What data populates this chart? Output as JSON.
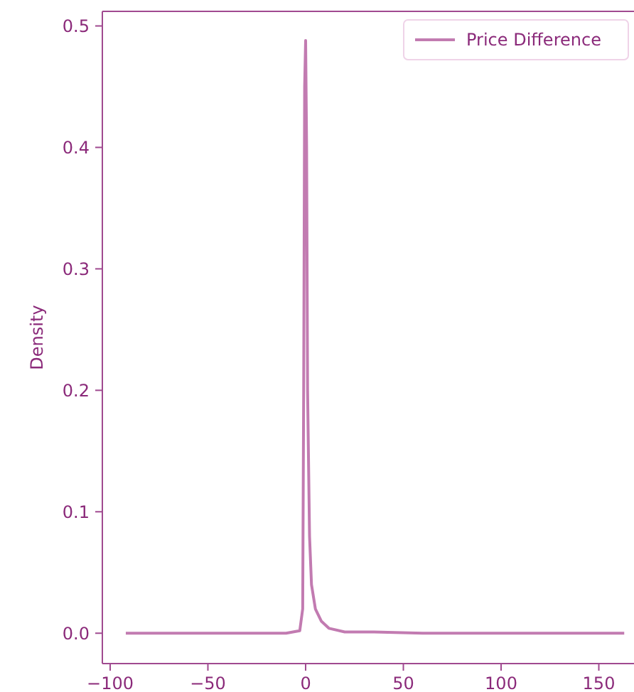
{
  "chart_data": {
    "type": "line",
    "ylabel": "Density",
    "legend": "top right",
    "xlim": [
      -104,
      168
    ],
    "ylim": [
      -0.025,
      0.512
    ],
    "xticks": [
      -100,
      -50,
      0,
      50,
      100,
      150
    ],
    "yticks": [
      {
        "value": 0,
        "label": "0.0"
      },
      0.1,
      0.2,
      0.3,
      0.4,
      0.5
    ],
    "series": [
      {
        "name": "Price Difference",
        "color": "#c27bb1",
        "x": [
          -92,
          -10,
          -3,
          -1.5,
          -1,
          -0.5,
          0,
          0.5,
          1,
          2,
          3,
          5,
          8,
          12,
          20,
          35,
          60,
          163
        ],
        "values": [
          0,
          0,
          0.002,
          0.02,
          0.2,
          0.45,
          0.488,
          0.4,
          0.2,
          0.08,
          0.04,
          0.02,
          0.01,
          0.004,
          0.001,
          0.001,
          0,
          0
        ]
      }
    ]
  }
}
